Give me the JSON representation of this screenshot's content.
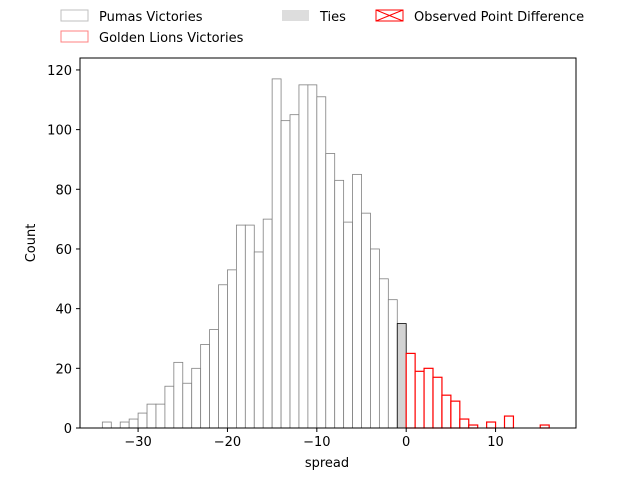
{
  "chart_data": {
    "type": "bar",
    "subtype": "histogram",
    "xlabel": "spread",
    "ylabel": "Count",
    "xlim": [
      -36.5,
      19
    ],
    "ylim": [
      0,
      124
    ],
    "xticks": [
      -30,
      -20,
      -10,
      0,
      10
    ],
    "yticks": [
      0,
      20,
      40,
      60,
      80,
      100,
      120
    ],
    "bin_width": 1,
    "grid": false,
    "legend": {
      "placement": "above plot, two columns",
      "entries": [
        {
          "label": "Pumas Victories",
          "style": "outline",
          "color": "#bfbfbf"
        },
        {
          "label": "Ties",
          "style": "filled",
          "color": "#dddddd"
        },
        {
          "label": "Golden Lions Victories",
          "style": "outline",
          "color": "#ff8080"
        },
        {
          "label": "Observed Point Difference",
          "style": "crossed-box",
          "color": "#ff0000"
        }
      ]
    },
    "series": [
      {
        "name": "Pumas Victories",
        "color": "#808080",
        "fill": "#ffffff",
        "bins": [
          {
            "x": -34,
            "count": 2
          },
          {
            "x": -32,
            "count": 2
          },
          {
            "x": -31,
            "count": 3
          },
          {
            "x": -30,
            "count": 5
          },
          {
            "x": -29,
            "count": 8
          },
          {
            "x": -28,
            "count": 8
          },
          {
            "x": -27,
            "count": 14
          },
          {
            "x": -26,
            "count": 22
          },
          {
            "x": -25,
            "count": 15
          },
          {
            "x": -24,
            "count": 20
          },
          {
            "x": -23,
            "count": 28
          },
          {
            "x": -22,
            "count": 33
          },
          {
            "x": -21,
            "count": 48
          },
          {
            "x": -20,
            "count": 53
          },
          {
            "x": -19,
            "count": 68
          },
          {
            "x": -18,
            "count": 68
          },
          {
            "x": -17,
            "count": 59
          },
          {
            "x": -16,
            "count": 70
          },
          {
            "x": -15,
            "count": 117
          },
          {
            "x": -14,
            "count": 103
          },
          {
            "x": -13,
            "count": 105
          },
          {
            "x": -12,
            "count": 115
          },
          {
            "x": -11,
            "count": 115
          },
          {
            "x": -10,
            "count": 111
          },
          {
            "x": -9,
            "count": 92
          },
          {
            "x": -8,
            "count": 83
          },
          {
            "x": -7,
            "count": 69
          },
          {
            "x": -6,
            "count": 85
          },
          {
            "x": -5,
            "count": 72
          },
          {
            "x": -4,
            "count": 60
          },
          {
            "x": -3,
            "count": 50
          },
          {
            "x": -2,
            "count": 43
          }
        ]
      },
      {
        "name": "Ties",
        "color": "#000000",
        "fill": "#d3d3d3",
        "bins": [
          {
            "x": -1,
            "count": 35
          }
        ]
      },
      {
        "name": "Golden Lions Victories",
        "color": "#ff0000",
        "fill": "#ffffff",
        "bins": [
          {
            "x": 0,
            "count": 25
          },
          {
            "x": 1,
            "count": 19
          },
          {
            "x": 2,
            "count": 20
          },
          {
            "x": 3,
            "count": 17
          },
          {
            "x": 4,
            "count": 11
          },
          {
            "x": 5,
            "count": 9
          },
          {
            "x": 6,
            "count": 3
          },
          {
            "x": 7,
            "count": 1
          },
          {
            "x": 9,
            "count": 2
          },
          {
            "x": 11,
            "count": 4
          },
          {
            "x": 15,
            "count": 1
          }
        ]
      }
    ]
  }
}
